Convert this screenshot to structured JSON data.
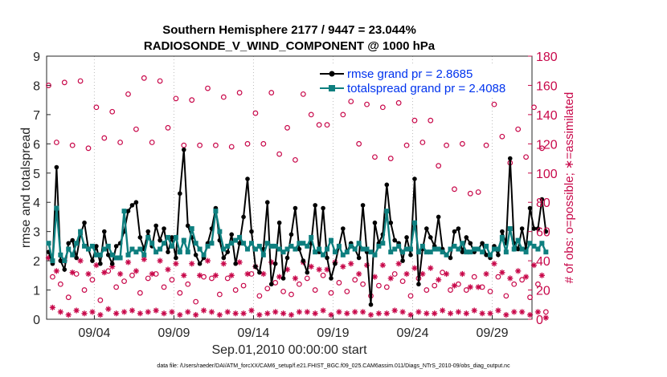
{
  "chart_data": {
    "type": "line",
    "title_line1": "Southern Hemisphere 2177 / 9447 = 23.044%",
    "title_line2": "RADIOSONDE_V_WIND_COMPONENT @ 1000 hPa",
    "xlabel": "Sep.01,2010 00:00:00 start",
    "ylabel": "rmse and totalspread",
    "ylabel_right": "# of obs: o=possible; ∗=assimilated",
    "x_range_days": [
      0,
      30.5
    ],
    "ylim": [
      0,
      9
    ],
    "ylim_right": [
      0,
      180
    ],
    "x_ticks": [
      {
        "day": 3,
        "label": "09/04"
      },
      {
        "day": 8,
        "label": "09/09"
      },
      {
        "day": 13,
        "label": "09/14"
      },
      {
        "day": 18,
        "label": "09/19"
      },
      {
        "day": 23,
        "label": "09/24"
      },
      {
        "day": 28,
        "label": "09/29"
      }
    ],
    "y_ticks": [
      "0",
      "1",
      "2",
      "3",
      "4",
      "5",
      "6",
      "7",
      "8",
      "9"
    ],
    "y_ticks_right": [
      "0",
      "20",
      "40",
      "60",
      "80",
      "100",
      "120",
      "140",
      "160",
      "180"
    ],
    "step_days": 0.25,
    "series": [
      {
        "name": "rmse",
        "legend_label": "rmse grand pr = 2.8685",
        "color": "#000000",
        "marker": "asterisk",
        "values": [
          2.3,
          1.9,
          5.2,
          2.0,
          1.7,
          2.6,
          2.7,
          2.1,
          2.9,
          3.3,
          2.4,
          2.0,
          2.5,
          1.9,
          3.0,
          2.2,
          1.9,
          2.5,
          2.6,
          3.0,
          3.7,
          3.9,
          4.0,
          2.8,
          2.4,
          3.0,
          2.5,
          3.2,
          2.7,
          3.1,
          2.3,
          2.8,
          2.1,
          4.3,
          5.8,
          3.2,
          2.8,
          2.2,
          1.9,
          2.1,
          2.6,
          3.1,
          3.8,
          2.7,
          2.1,
          2.3,
          2.9,
          1.9,
          2.6,
          3.5,
          4.8,
          3.0,
          1.8,
          1.6,
          2.4,
          4.0,
          1.2,
          1.9,
          3.3,
          1.4,
          2.1,
          2.9,
          3.8,
          2.4,
          2.0,
          1.6,
          2.6,
          3.9,
          2.3,
          3.8,
          2.1,
          1.4,
          1.9,
          2.5,
          3.1,
          2.3,
          2.6,
          2.4,
          2.1,
          3.9,
          2.3,
          0.5,
          3.3,
          2.6,
          2.9,
          4.6,
          3.3,
          2.7,
          2.6,
          2.0,
          2.8,
          2.2,
          4.8,
          1.2,
          2.4,
          3.1,
          2.8,
          2.5,
          3.5,
          2.4,
          2.2,
          2.1,
          3.0,
          3.1,
          2.3,
          2.8,
          2.6,
          2.3,
          2.4,
          2.6,
          2.2,
          2.1,
          2.5,
          2.2,
          3.0,
          2.6,
          5.5,
          2.6,
          2.4,
          3.1,
          2.4,
          3.8,
          3.1,
          3.1,
          4.1,
          3.0
        ]
      },
      {
        "name": "totalspread",
        "legend_label": "totalspread grand pr = 2.4088",
        "color": "#0e7f7f",
        "marker": "square",
        "values": [
          2.6,
          2.0,
          3.8,
          2.2,
          2.0,
          2.4,
          2.2,
          2.6,
          3.0,
          2.5,
          2.4,
          2.5,
          2.2,
          2.2,
          2.4,
          2.5,
          2.2,
          2.1,
          2.1,
          3.7,
          2.2,
          2.4,
          2.3,
          2.4,
          2.2,
          2.8,
          2.6,
          2.3,
          2.4,
          2.6,
          2.8,
          2.5,
          2.8,
          2.3,
          2.7,
          2.3,
          3.1,
          2.6,
          2.4,
          2.2,
          2.5,
          2.6,
          3.7,
          3.0,
          2.4,
          2.5,
          2.6,
          2.7,
          2.8,
          2.6,
          2.4,
          2.6,
          2.4,
          2.5,
          2.2,
          2.6,
          2.5,
          2.5,
          2.4,
          2.3,
          2.4,
          2.5,
          2.4,
          2.6,
          2.6,
          2.5,
          2.8,
          2.3,
          2.4,
          2.2,
          2.4,
          2.7,
          2.3,
          2.5,
          2.2,
          2.3,
          2.5,
          2.4,
          2.6,
          2.4,
          2.4,
          2.3,
          2.2,
          2.5,
          2.6,
          3.7,
          2.3,
          2.4,
          2.5,
          2.3,
          2.4,
          2.4,
          3.3,
          2.3,
          2.5,
          2.3,
          2.3,
          2.4,
          2.4,
          2.3,
          2.2,
          2.4,
          2.5,
          2.4,
          2.6,
          2.3,
          2.3,
          2.4,
          2.4,
          2.3,
          2.5,
          2.2,
          2.4,
          2.4,
          2.8,
          2.3,
          3.1,
          2.4,
          2.7,
          2.4,
          2.3,
          2.6,
          2.5,
          2.4,
          2.6,
          2.3
        ]
      },
      {
        "name": "obs_possible",
        "axis": "right",
        "color": "#c8084a",
        "marker": "circle",
        "values": [
          160,
          29,
          121,
          24,
          162,
          15,
          119,
          31,
          163,
          20,
          117,
          27,
          145,
          13,
          124,
          33,
          142,
          22,
          121,
          26,
          154,
          30,
          130,
          18,
          165,
          28,
          121,
          31,
          163,
          22,
          131,
          27,
          151,
          18,
          119,
          24,
          150,
          12,
          119,
          29,
          158,
          28,
          119,
          17,
          152,
          28,
          118,
          20,
          155,
          23,
          120,
          31,
          141,
          16,
          120,
          21,
          155,
          25,
          113,
          19,
          131,
          17,
          109,
          24,
          154,
          28,
          140,
          20,
          133,
          30,
          133,
          18,
          155,
          25,
          140,
          19,
          149,
          27,
          120,
          24,
          147,
          16,
          111,
          23,
          145,
          22,
          110,
          31,
          148,
          26,
          119,
          16,
          136,
          28,
          121,
          20,
          136,
          23,
          105,
          32,
          119,
          20,
          89,
          24,
          120,
          20,
          86,
          29,
          87,
          22,
          119,
          19,
          147,
          29,
          125,
          16,
          107,
          24,
          130,
          27,
          111,
          15,
          145,
          24,
          117,
          5
        ]
      },
      {
        "name": "obs_assimilated",
        "axis": "right",
        "color": "#c8084a",
        "marker": "asterisk",
        "values": [
          42,
          8,
          33,
          5,
          40,
          3,
          32,
          6,
          40,
          4,
          31,
          5,
          37,
          3,
          32,
          7,
          36,
          4,
          31,
          5,
          39,
          6,
          33,
          4,
          41,
          5,
          31,
          6,
          40,
          4,
          34,
          5,
          38,
          3,
          30,
          5,
          38,
          3,
          30,
          6,
          40,
          5,
          30,
          3,
          38,
          5,
          30,
          4,
          39,
          4,
          31,
          6,
          36,
          3,
          31,
          4,
          39,
          5,
          29,
          4,
          34,
          3,
          28,
          5,
          39,
          5,
          36,
          4,
          34,
          6,
          34,
          3,
          39,
          5,
          36,
          4,
          38,
          5,
          31,
          5,
          37,
          3,
          29,
          4,
          37,
          4,
          28,
          6,
          38,
          5,
          31,
          3,
          35,
          5,
          31,
          4,
          35,
          4,
          27,
          6,
          31,
          4,
          23,
          5,
          31,
          4,
          22,
          6,
          22,
          4,
          31,
          4,
          38,
          6,
          32,
          3,
          28,
          5,
          33,
          5,
          29,
          3,
          37,
          5,
          30,
          1
        ]
      }
    ]
  },
  "footer": "data file: /Users/raeder/DAI/ATM_forcXX/CAM6_setup/f.e21.FHIST_BGC.f09_025.CAM6assim.011/Diags_NTrS_2010-09/obs_diag_output.nc"
}
